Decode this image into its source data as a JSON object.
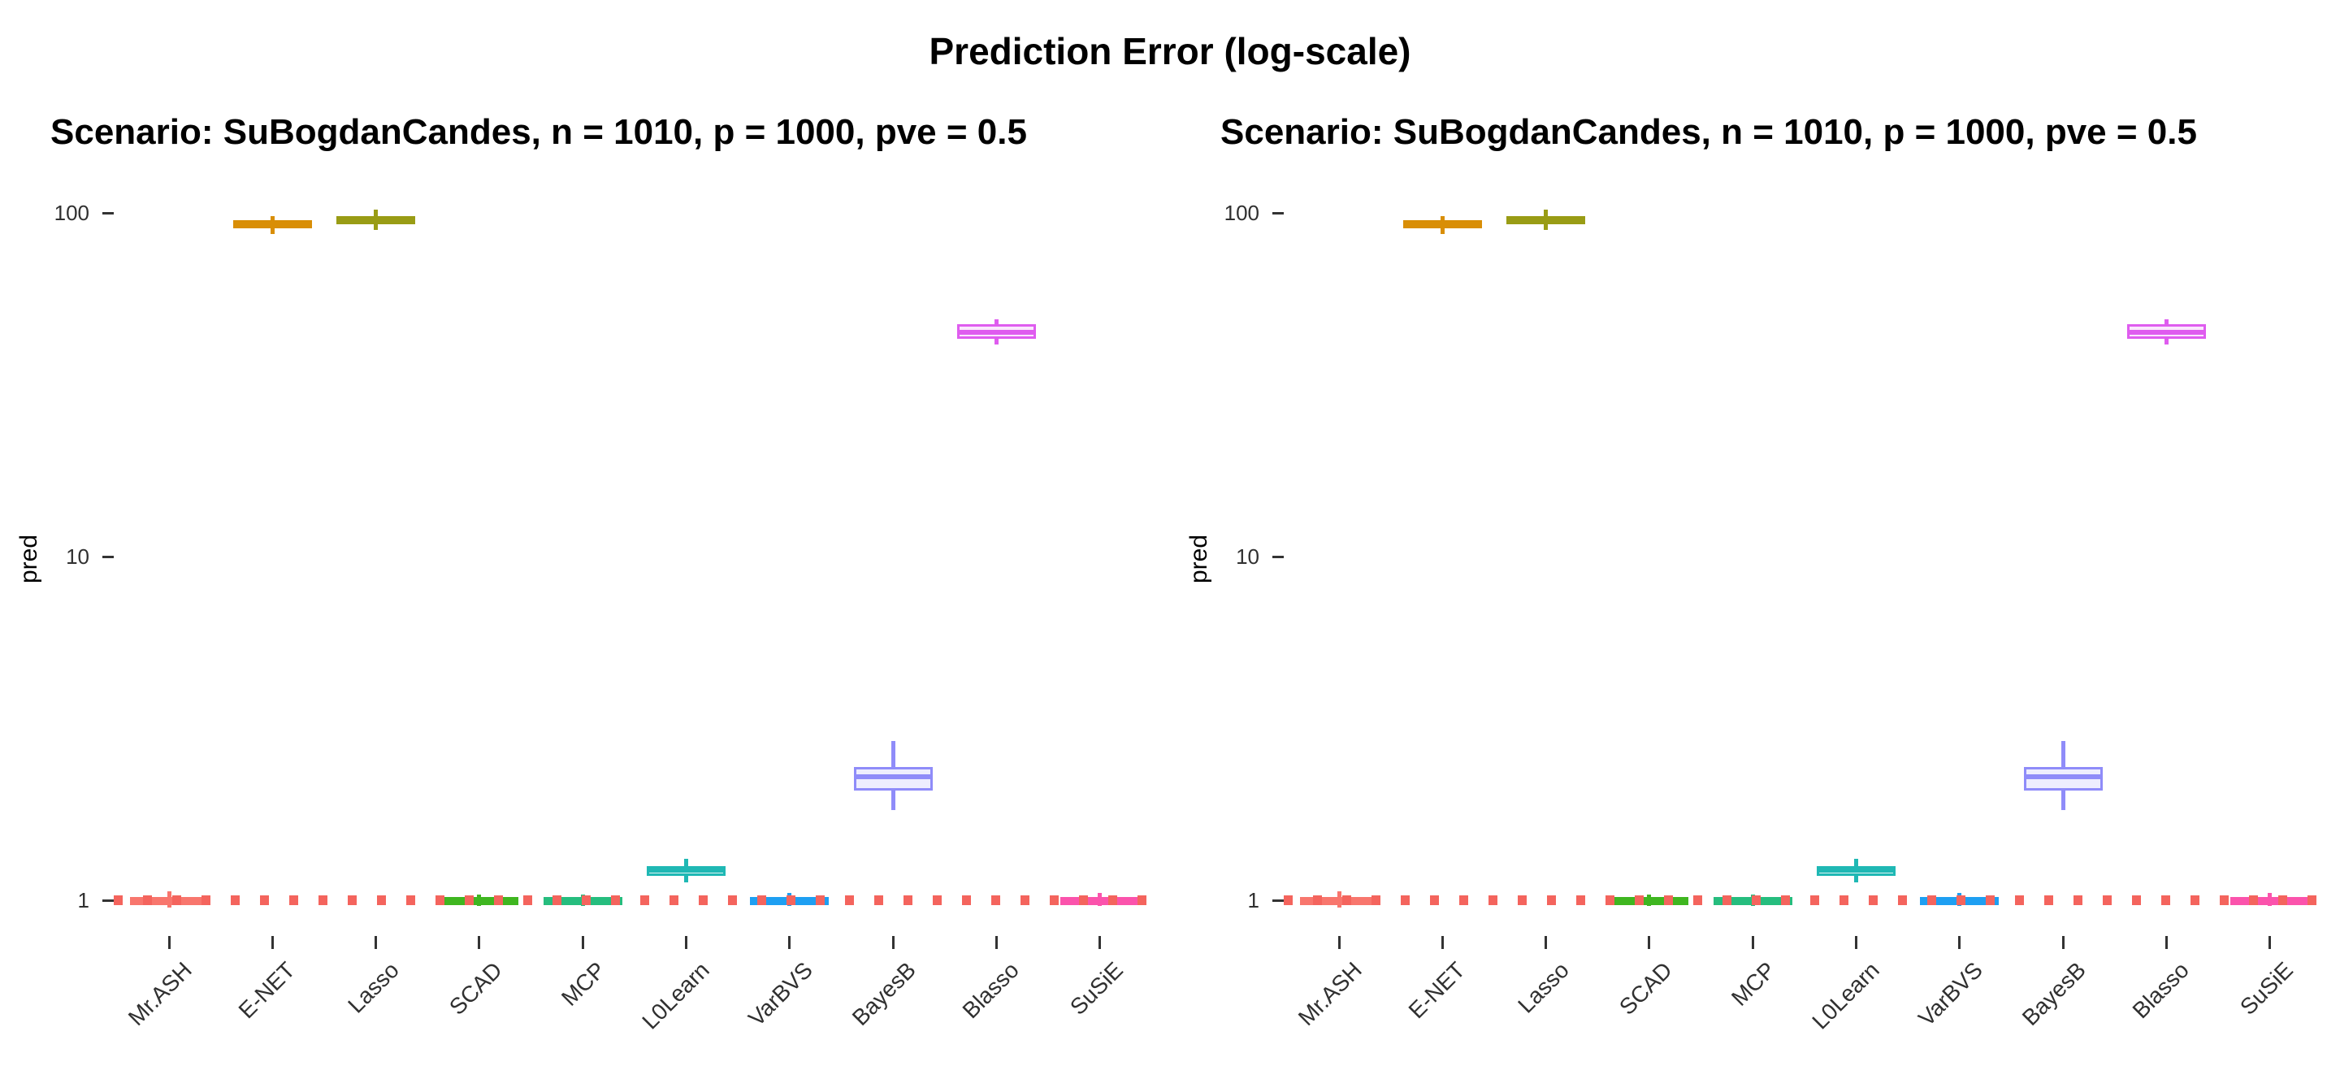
{
  "title": "Prediction Error (log-scale)",
  "panels": [
    {
      "subtitle": "Scenario: SuBogdanCandes, n = 1010, p = 1000, pve = 0.5"
    },
    {
      "subtitle": "Scenario: SuBogdanCandes, n = 1010, p = 1000, pve = 0.5"
    }
  ],
  "chart_data": [
    {
      "type": "boxplot",
      "title": "Scenario: SuBogdanCandes, n = 1010, p = 1000, pve = 0.5",
      "xlabel": "",
      "ylabel": "pred",
      "yscale": "log",
      "yticks": [
        100,
        10,
        1
      ],
      "ylim": [
        0.79,
        125
      ],
      "grid": false,
      "legend": false,
      "reference_line": {
        "y": 1,
        "style": "dotted",
        "color": "#F4645D"
      },
      "categories": [
        "Mr.ASH",
        "E-NET",
        "Lasso",
        "SCAD",
        "MCP",
        "L0Learn",
        "VarBVS",
        "BayesB",
        "Blasso",
        "SuSiE"
      ],
      "series": [
        {
          "method": "Mr.ASH",
          "color": "#F8766D",
          "whisker_low": 0.95,
          "q1": 0.98,
          "median": 1.0,
          "q3": 1.02,
          "whisker_high": 1.06
        },
        {
          "method": "E-NET",
          "color": "#D98E06",
          "whisker_low": 87,
          "q1": 90,
          "median": 92.5,
          "q3": 95,
          "whisker_high": 98
        },
        {
          "method": "Lasso",
          "color": "#999C15",
          "whisker_low": 89,
          "q1": 93,
          "median": 95.5,
          "q3": 98,
          "whisker_high": 102
        },
        {
          "method": "SCAD",
          "color": "#3FB620",
          "whisker_low": 0.96,
          "q1": 0.98,
          "median": 1.0,
          "q3": 1.02,
          "whisker_high": 1.04
        },
        {
          "method": "MCP",
          "color": "#26BD7E",
          "whisker_low": 0.96,
          "q1": 0.98,
          "median": 1.0,
          "q3": 1.02,
          "whisker_high": 1.04
        },
        {
          "method": "L0Learn",
          "color": "#1FB8B4",
          "whisker_low": 1.13,
          "q1": 1.18,
          "median": 1.22,
          "q3": 1.26,
          "whisker_high": 1.32
        },
        {
          "method": "VarBVS",
          "color": "#1E9FF2",
          "whisker_low": 0.96,
          "q1": 0.98,
          "median": 1.0,
          "q3": 1.02,
          "whisker_high": 1.05
        },
        {
          "method": "BayesB",
          "color": "#8F8CF9",
          "whisker_low": 1.83,
          "q1": 2.08,
          "median": 2.29,
          "q3": 2.44,
          "whisker_high": 2.91
        },
        {
          "method": "Blasso",
          "color": "#DF5CEF",
          "whisker_low": 41.5,
          "q1": 43,
          "median": 45,
          "q3": 47.5,
          "whisker_high": 49
        },
        {
          "method": "SuSiE",
          "color": "#FB53AC",
          "whisker_low": 0.96,
          "q1": 0.98,
          "median": 1.0,
          "q3": 1.02,
          "whisker_high": 1.05
        }
      ]
    },
    {
      "type": "boxplot",
      "title": "Scenario: SuBogdanCandes, n = 1010, p = 1000, pve = 0.5",
      "xlabel": "",
      "ylabel": "pred",
      "yscale": "log",
      "yticks": [
        100,
        10,
        1
      ],
      "ylim": [
        0.79,
        125
      ],
      "grid": false,
      "legend": false,
      "reference_line": {
        "y": 1,
        "style": "dotted",
        "color": "#F4645D"
      },
      "categories": [
        "Mr.ASH",
        "E-NET",
        "Lasso",
        "SCAD",
        "MCP",
        "L0Learn",
        "VarBVS",
        "BayesB",
        "Blasso",
        "SuSiE"
      ],
      "series": [
        {
          "method": "Mr.ASH",
          "color": "#F8766D",
          "whisker_low": 0.95,
          "q1": 0.98,
          "median": 1.0,
          "q3": 1.02,
          "whisker_high": 1.06
        },
        {
          "method": "E-NET",
          "color": "#D98E06",
          "whisker_low": 87,
          "q1": 90,
          "median": 92.5,
          "q3": 95,
          "whisker_high": 98
        },
        {
          "method": "Lasso",
          "color": "#999C15",
          "whisker_low": 89,
          "q1": 93,
          "median": 95.5,
          "q3": 98,
          "whisker_high": 102
        },
        {
          "method": "SCAD",
          "color": "#3FB620",
          "whisker_low": 0.96,
          "q1": 0.98,
          "median": 1.0,
          "q3": 1.02,
          "whisker_high": 1.04
        },
        {
          "method": "MCP",
          "color": "#26BD7E",
          "whisker_low": 0.96,
          "q1": 0.98,
          "median": 1.0,
          "q3": 1.02,
          "whisker_high": 1.04
        },
        {
          "method": "L0Learn",
          "color": "#1FB8B4",
          "whisker_low": 1.13,
          "q1": 1.18,
          "median": 1.22,
          "q3": 1.26,
          "whisker_high": 1.32
        },
        {
          "method": "VarBVS",
          "color": "#1E9FF2",
          "whisker_low": 0.96,
          "q1": 0.98,
          "median": 1.0,
          "q3": 1.02,
          "whisker_high": 1.05
        },
        {
          "method": "BayesB",
          "color": "#8F8CF9",
          "whisker_low": 1.83,
          "q1": 2.08,
          "median": 2.29,
          "q3": 2.44,
          "whisker_high": 2.91
        },
        {
          "method": "Blasso",
          "color": "#DF5CEF",
          "whisker_low": 41.5,
          "q1": 43,
          "median": 45,
          "q3": 47.5,
          "whisker_high": 49
        },
        {
          "method": "SuSiE",
          "color": "#FB53AC",
          "whisker_low": 0.96,
          "q1": 0.98,
          "median": 1.0,
          "q3": 1.02,
          "whisker_high": 1.05
        }
      ]
    }
  ]
}
